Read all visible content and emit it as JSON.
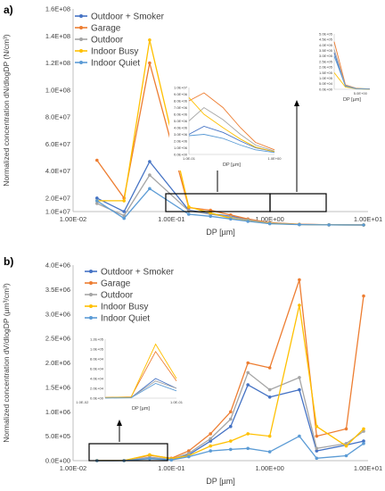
{
  "chart_data": [
    {
      "panel_label": "a)",
      "type": "line",
      "ylabel": "Normalized concentration dN/dlogDP (N/cm³)",
      "xlabel": "DP [µm]",
      "xscale": "log",
      "xlim": [
        0.01,
        10
      ],
      "ylim": [
        10000000,
        160000000
      ],
      "yticks": [
        "1.0E+07",
        "2.0E+07",
        "4.0E+07",
        "6.0E+07",
        "8.0E+07",
        "1.0E+08",
        "1.2E+08",
        "1.4E+08",
        "1.6E+08"
      ],
      "xticks": [
        "1.00E-02",
        "1.00E-01",
        "1.00E+00",
        "1.00E+01"
      ],
      "legend_position": "top-left",
      "series": [
        {
          "name": "Outdoor + Smoker",
          "color": "#4472C4",
          "x": [
            0.0175,
            0.033,
            0.06,
            0.15,
            0.25,
            0.4,
            0.6,
            1.0,
            2.0,
            4.0,
            9.0
          ],
          "y": [
            20000000,
            10000000,
            47000000,
            11000000,
            8500000,
            6500000,
            4000000,
            1500000,
            500000,
            200000,
            100000
          ]
        },
        {
          "name": "Garage",
          "color": "#ED7D31",
          "x": [
            0.0175,
            0.033,
            0.06,
            0.15,
            0.25,
            0.4,
            0.6,
            1.0,
            2.0,
            4.0,
            9.0
          ],
          "y": [
            48000000,
            20000000,
            120000000,
            13000000,
            11000000,
            7500000,
            4500000,
            1800000,
            600000,
            250000,
            100000
          ]
        },
        {
          "name": "Outdoor",
          "color": "#A5A5A5",
          "x": [
            0.0175,
            0.033,
            0.06,
            0.15,
            0.25,
            0.4,
            0.6,
            1.0,
            2.0,
            4.0,
            9.0
          ],
          "y": [
            16000000,
            7000000,
            37000000,
            10500000,
            8000000,
            6000000,
            3800000,
            1500000,
            500000,
            200000,
            100000
          ]
        },
        {
          "name": "Indoor Busy",
          "color": "#FFC000",
          "x": [
            0.0175,
            0.033,
            0.06,
            0.15,
            0.25,
            0.4,
            0.6,
            1.0,
            2.0,
            4.0,
            9.0
          ],
          "y": [
            18000000,
            18000000,
            137000000,
            13500000,
            9000000,
            5000000,
            3000000,
            1200000,
            400000,
            150000,
            100000
          ]
        },
        {
          "name": "Indoor Quiet",
          "color": "#5B9BD5",
          "x": [
            0.0175,
            0.033,
            0.06,
            0.15,
            0.25,
            0.4,
            0.6,
            1.0,
            2.0,
            4.0,
            9.0
          ],
          "y": [
            18000000,
            5000000,
            27000000,
            8000000,
            6500000,
            4500000,
            2800000,
            1000000,
            350000,
            150000,
            100000
          ]
        }
      ],
      "insets": [
        {
          "xlabel": "DP [µm]",
          "xticks": [
            "1.0E-01",
            "1.0E+00"
          ],
          "yticks": [
            "0.0E+00",
            "1.0E+06",
            "2.0E+06",
            "3.0E+06",
            "4.0E+06",
            "5.0E+06",
            "6.0E+06",
            "7.0E+06",
            "8.0E+06",
            "9.0E+06",
            "1.0E+07"
          ],
          "ylim": [
            0,
            10000000
          ],
          "x": [
            0.1,
            0.15,
            0.25,
            0.4,
            0.6,
            1.0
          ],
          "series": [
            {
              "color": "#4472C4",
              "y": [
                3000000,
                4200000,
                3300000,
                2000000,
                1000000,
                400000
              ]
            },
            {
              "color": "#ED7D31",
              "y": [
                8000000,
                9200000,
                7000000,
                4000000,
                1800000,
                700000
              ]
            },
            {
              "color": "#A5A5A5",
              "y": [
                5000000,
                7000000,
                5200000,
                3000000,
                1400000,
                500000
              ]
            },
            {
              "color": "#FFC000",
              "y": [
                8500000,
                6000000,
                4000000,
                2300000,
                1100000,
                400000
              ]
            },
            {
              "color": "#5B9BD5",
              "y": [
                2800000,
                3000000,
                2400000,
                1400000,
                700000,
                300000
              ]
            }
          ]
        },
        {
          "xlabel": "DP [µm]",
          "xticks": [
            "5.0E+00"
          ],
          "yticks": [
            "0.0E+00",
            "5.0E+04",
            "1.0E+05",
            "1.5E+05",
            "2.0E+05",
            "2.5E+05",
            "3.0E+05",
            "3.5E+05",
            "4.0E+05",
            "4.5E+05",
            "5.0E+05"
          ],
          "ylim": [
            0,
            500000
          ],
          "x": [
            1.0,
            2.0,
            4.0,
            9.0
          ],
          "series": [
            {
              "color": "#4472C4",
              "y": [
                330000,
                30000,
                5000,
                2000
              ]
            },
            {
              "color": "#ED7D31",
              "y": [
                430000,
                40000,
                8000,
                3000
              ]
            },
            {
              "color": "#A5A5A5",
              "y": [
                360000,
                35000,
                6000,
                2000
              ]
            },
            {
              "color": "#FFC000",
              "y": [
                150000,
                20000,
                3000,
                1000
              ]
            },
            {
              "color": "#5B9BD5",
              "y": [
                300000,
                28000,
                5000,
                2000
              ]
            }
          ]
        }
      ]
    },
    {
      "panel_label": "b)",
      "type": "line",
      "ylabel": "Normalized concentration dV/dlogDP (µm³/cm³)",
      "xlabel": "DP [µm]",
      "xscale": "log",
      "xlim": [
        0.01,
        10
      ],
      "ylim": [
        0,
        4000000
      ],
      "yticks": [
        "0.0E+00",
        "5.0E+05",
        "1.0E+06",
        "1.5E+06",
        "2.0E+06",
        "2.5E+06",
        "3.0E+06",
        "3.5E+06",
        "4.0E+06"
      ],
      "xticks": [
        "1.00E-02",
        "1.00E-01",
        "1.00E+00",
        "1.00E+01"
      ],
      "legend_position": "top-left",
      "series": [
        {
          "name": "Outdoor + Smoker",
          "color": "#4472C4",
          "x": [
            0.0175,
            0.033,
            0.06,
            0.1,
            0.15,
            0.25,
            0.4,
            0.6,
            1.0,
            2.0,
            3.0,
            6.0,
            9.0
          ],
          "y": [
            500,
            1000,
            50000,
            20000,
            120000,
            400000,
            700000,
            1550000,
            1300000,
            1450000,
            200000,
            320000,
            400000
          ]
        },
        {
          "name": "Garage",
          "color": "#ED7D31",
          "x": [
            0.0175,
            0.033,
            0.06,
            0.1,
            0.15,
            0.25,
            0.4,
            0.6,
            1.0,
            2.0,
            3.0,
            6.0,
            9.0
          ],
          "y": [
            1500,
            2500,
            110000,
            50000,
            200000,
            550000,
            1000000,
            2000000,
            1900000,
            3700000,
            500000,
            650000,
            3370000
          ]
        },
        {
          "name": "Outdoor",
          "color": "#A5A5A5",
          "x": [
            0.0175,
            0.033,
            0.06,
            0.1,
            0.15,
            0.25,
            0.4,
            0.6,
            1.0,
            2.0,
            3.0,
            6.0,
            9.0
          ],
          "y": [
            800,
            1500,
            70000,
            30000,
            150000,
            450000,
            850000,
            1800000,
            1450000,
            1700000,
            250000,
            350000,
            600000
          ]
        },
        {
          "name": "Indoor Busy",
          "color": "#FFC000",
          "x": [
            0.0175,
            0.033,
            0.06,
            0.1,
            0.15,
            0.25,
            0.4,
            0.6,
            1.0,
            2.0,
            3.0,
            6.0,
            9.0
          ],
          "y": [
            1200,
            2000,
            120000,
            40000,
            100000,
            300000,
            400000,
            550000,
            500000,
            3180000,
            700000,
            300000,
            650000
          ]
        },
        {
          "name": "Indoor Quiet",
          "color": "#5B9BD5",
          "x": [
            0.0175,
            0.033,
            0.06,
            0.1,
            0.15,
            0.25,
            0.4,
            0.6,
            1.0,
            2.0,
            3.0,
            6.0,
            9.0
          ],
          "y": [
            400,
            800,
            40000,
            15000,
            80000,
            200000,
            230000,
            250000,
            180000,
            500000,
            50000,
            100000,
            350000
          ]
        }
      ],
      "insets": [
        {
          "xlabel": "DP [µm]",
          "xticks": [
            "1.0E-02",
            "1.0E-01"
          ],
          "yticks": [
            "0.0E+00",
            "2.0E+04",
            "4.0E+04",
            "6.0E+04",
            "8.0E+04",
            "1.0E+05",
            "1.2E+05"
          ],
          "ylim": [
            0,
            120000
          ],
          "x": [
            0.0175,
            0.033,
            0.06,
            0.1
          ],
          "series": [
            {
              "color": "#4472C4",
              "y": [
                500,
                1000,
                40000,
                20000
              ]
            },
            {
              "color": "#ED7D31",
              "y": [
                1500,
                2500,
                95000,
                35000
              ]
            },
            {
              "color": "#A5A5A5",
              "y": [
                800,
                1500,
                35000,
                20000
              ]
            },
            {
              "color": "#FFC000",
              "y": [
                1200,
                2000,
                110000,
                40000
              ]
            },
            {
              "color": "#5B9BD5",
              "y": [
                400,
                800,
                30000,
                15000
              ]
            }
          ]
        }
      ]
    }
  ]
}
